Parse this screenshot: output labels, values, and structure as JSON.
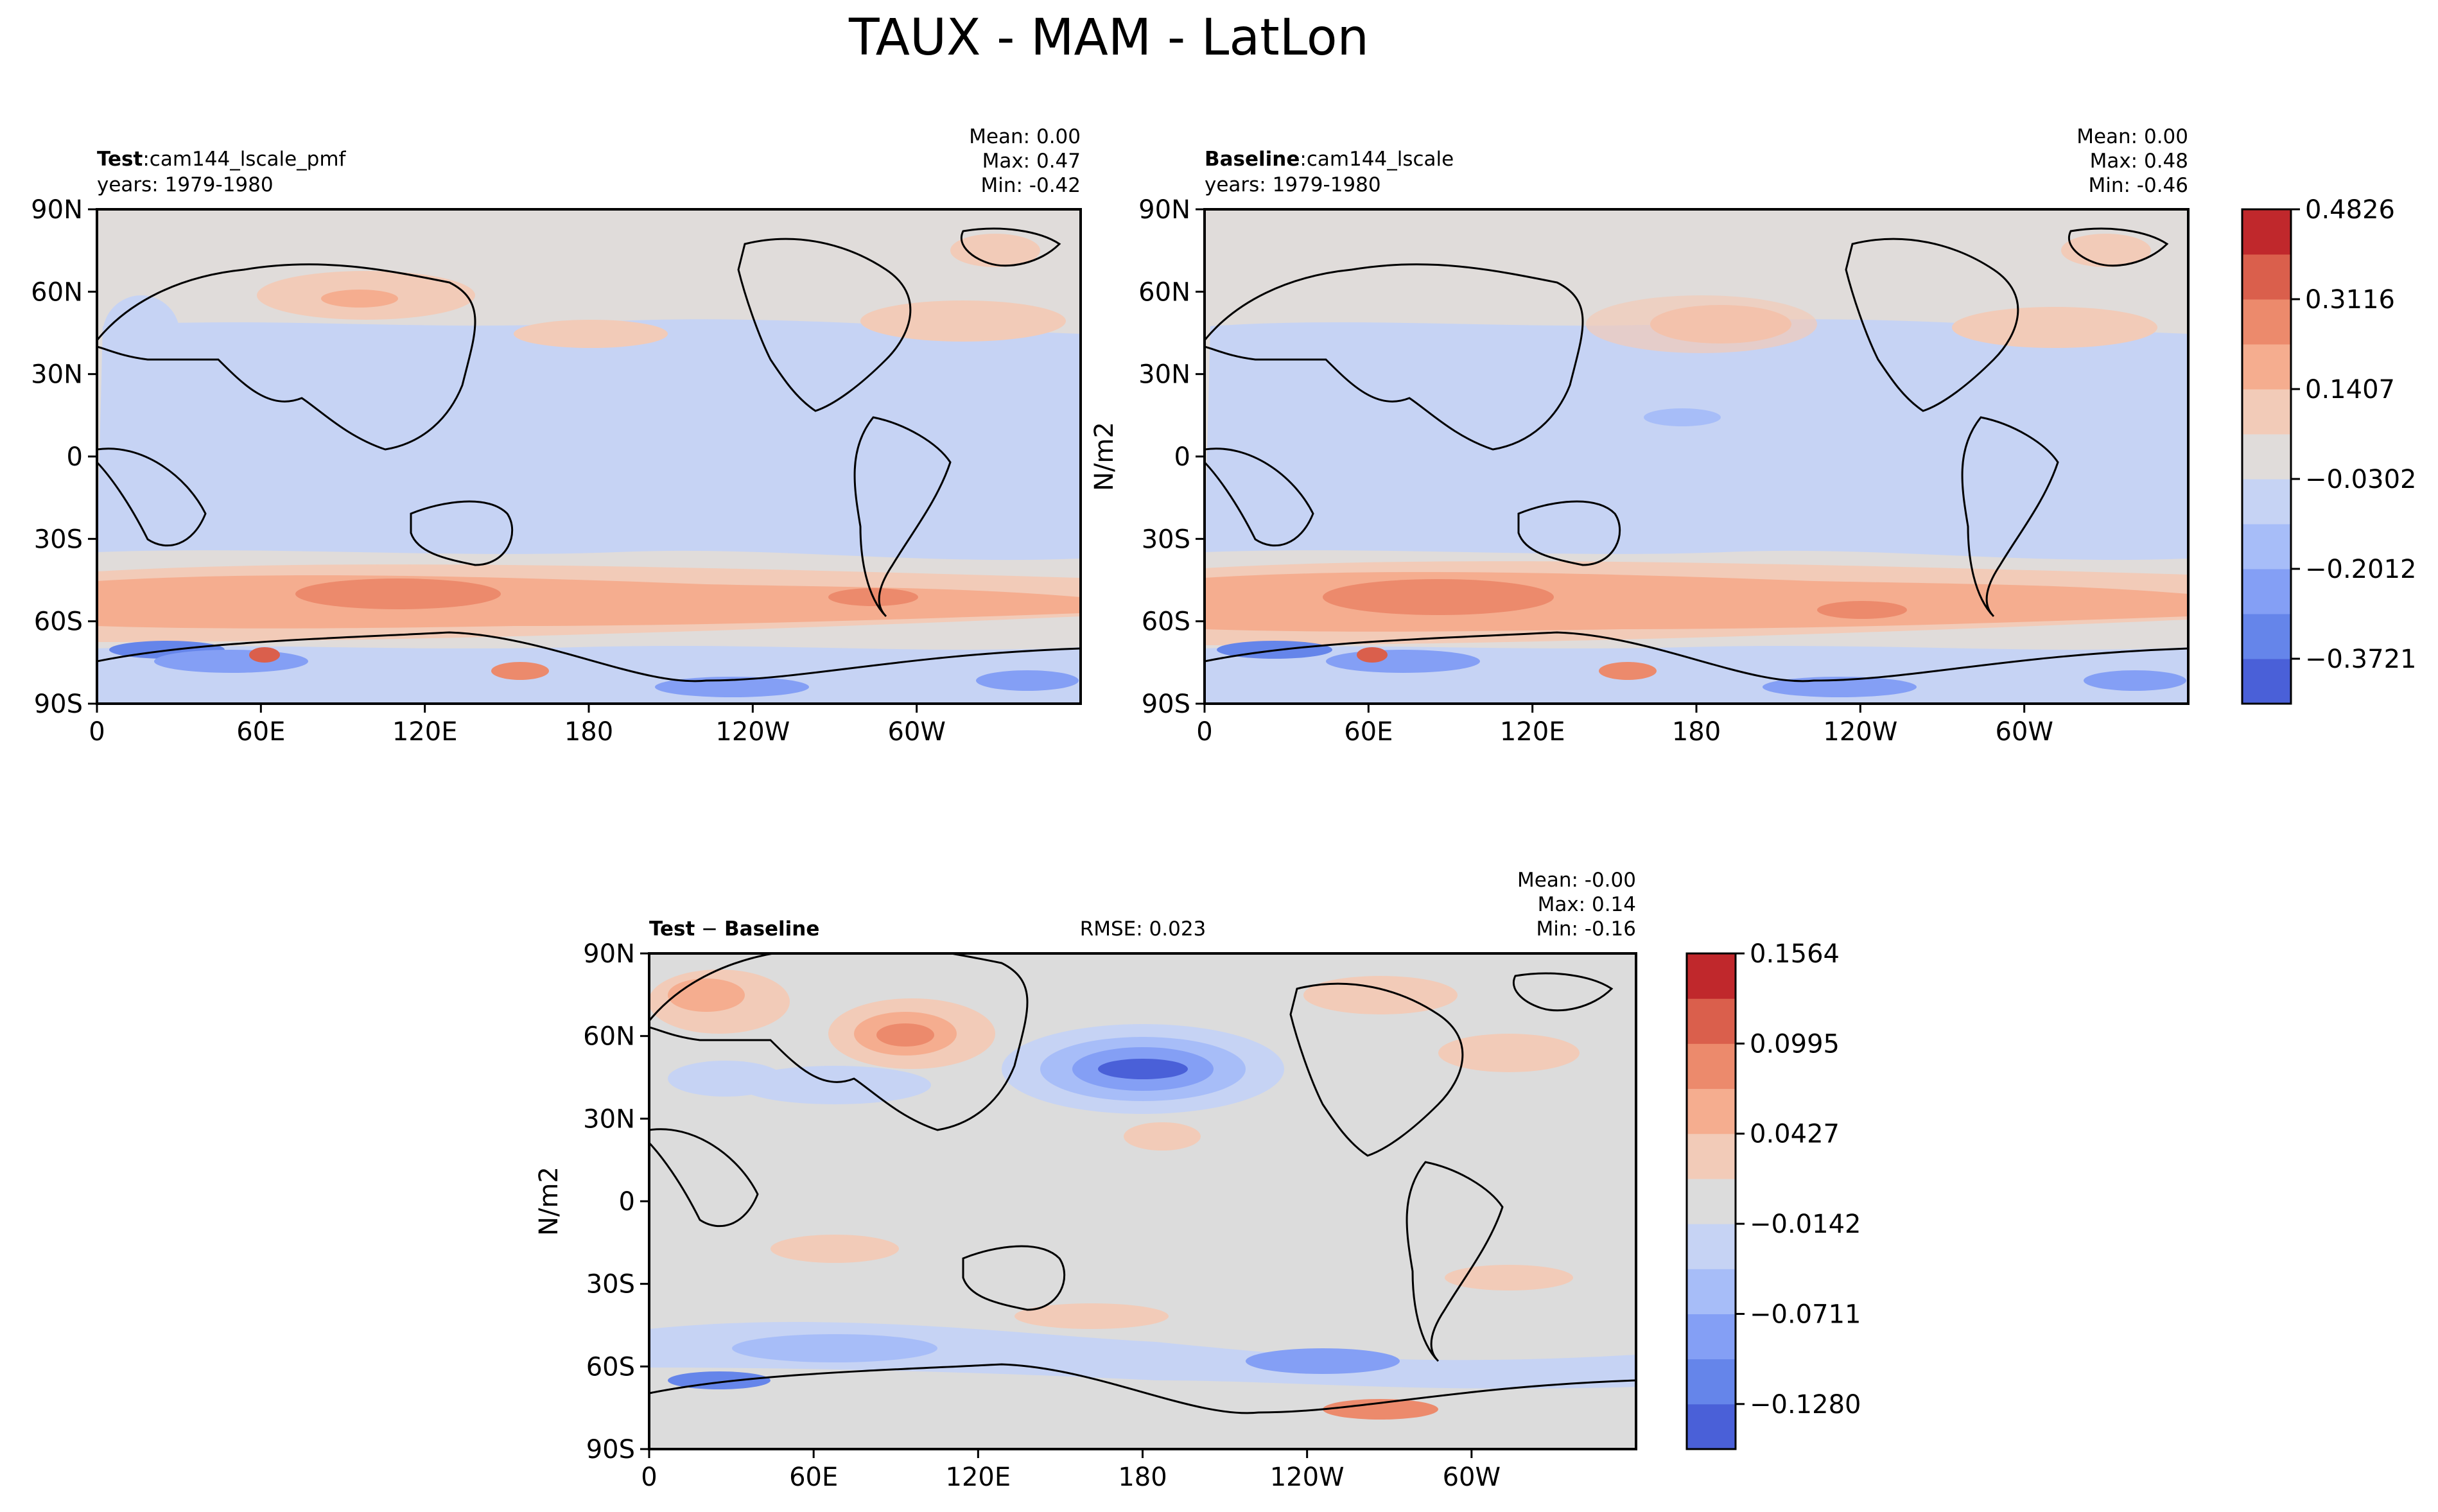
{
  "figure": {
    "title": "TAUX - MAM - LatLon"
  },
  "chart_data": [
    {
      "type": "heatmap",
      "panel": "test",
      "label_bold": "Test",
      "label_sep": ":",
      "case": "cam144_lscale_pmf",
      "years": "years: 1979-1980",
      "stats": {
        "mean": "Mean:  0.00",
        "max": "Max:  0.47",
        "min": "Min: -0.42"
      },
      "ylabel": "",
      "xticks": [
        "0",
        "60E",
        "120E",
        "180",
        "120W",
        "60W"
      ],
      "yticks": [
        "90N",
        "60N",
        "30N",
        "0",
        "30S",
        "60S",
        "90S"
      ],
      "xlim": [
        0,
        360
      ],
      "ylim": [
        -90,
        90
      ]
    },
    {
      "type": "heatmap",
      "panel": "baseline",
      "label_bold": "Baseline",
      "label_sep": ":",
      "case": "cam144_lscale",
      "years": "years: 1979-1980",
      "stats": {
        "mean": "Mean:  0.00",
        "max": "Max:  0.48",
        "min": "Min: -0.46"
      },
      "ylabel": "N/m2",
      "xticks": [
        "0",
        "60E",
        "120E",
        "180",
        "120W",
        "60W"
      ],
      "yticks": [
        "90N",
        "60N",
        "30N",
        "0",
        "30S",
        "60S",
        "90S"
      ],
      "xlim": [
        0,
        360
      ],
      "ylim": [
        -90,
        90
      ],
      "colorbar": {
        "ticks": [
          "0.4826",
          "0.3116",
          "0.1407",
          "−0.0302",
          "−0.2012",
          "−0.3721"
        ],
        "colors": [
          "#4a60d8",
          "#6585ea",
          "#849ff5",
          "#a7bdf8",
          "#c6d3f4",
          "#e0dcda",
          "#f2cbb8",
          "#f5ad8f",
          "#ec8a6c",
          "#da5f4c",
          "#c0282c"
        ]
      }
    },
    {
      "type": "heatmap",
      "panel": "difference",
      "label_bold": "Test",
      "label_sep": " − ",
      "label_bold2": "Baseline",
      "rmse": "RMSE: 0.023",
      "stats": {
        "mean": "Mean: -0.00",
        "max": "Max:  0.14",
        "min": "Min: -0.16"
      },
      "ylabel": "N/m2",
      "xticks": [
        "0",
        "60E",
        "120E",
        "180",
        "120W",
        "60W"
      ],
      "yticks": [
        "90N",
        "60N",
        "30N",
        "0",
        "30S",
        "60S",
        "90S"
      ],
      "xlim": [
        0,
        360
      ],
      "ylim": [
        -90,
        90
      ],
      "colorbar": {
        "ticks": [
          "0.1564",
          "0.0995",
          "0.0427",
          "−0.0142",
          "−0.0711",
          "−0.1280"
        ],
        "colors": [
          "#4a60d8",
          "#6585ea",
          "#849ff5",
          "#a7bdf8",
          "#c6d3f4",
          "#dcdcdc",
          "#f2cbb8",
          "#f5ad8f",
          "#ec8a6c",
          "#da5f4c",
          "#c0282c"
        ]
      }
    }
  ]
}
